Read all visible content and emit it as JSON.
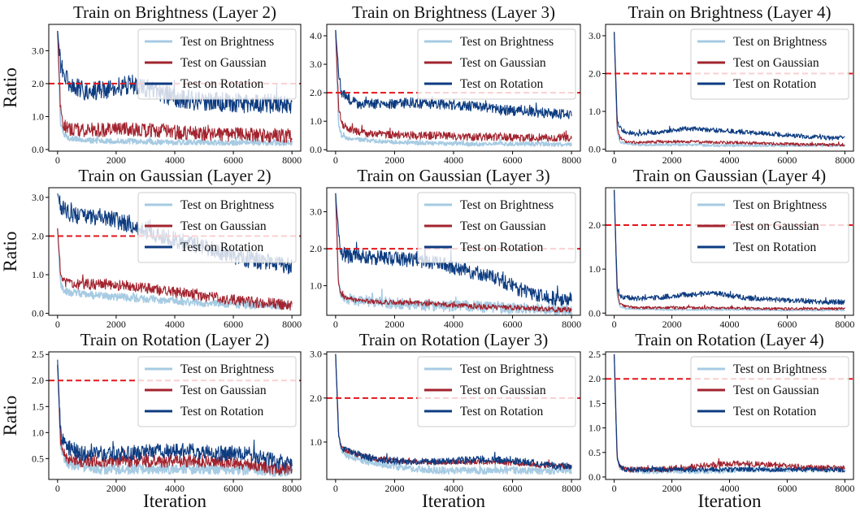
{
  "figure": {
    "row_label": "Ratio",
    "col_label": "Iteration",
    "threshold": 2.0,
    "colors": {
      "brightness": "#a6cbe3",
      "gaussian": "#a2232e",
      "rotation": "#0c3b80",
      "threshold": "#e3161b"
    }
  },
  "chart_data": [
    {
      "type": "line",
      "title": "Train on Brightness (Layer 2)",
      "xlabel": "",
      "ylabel": "Ratio",
      "xlim": [
        -300,
        8300
      ],
      "ylim": [
        -0.05,
        3.8
      ],
      "xticks": [
        "0",
        "2000",
        "4000",
        "6000",
        "8000"
      ],
      "yticks": [
        "0.0",
        "1.0",
        "2.0",
        "3.0"
      ],
      "ytick_values": [
        0,
        1,
        2,
        3
      ],
      "x": [
        0,
        100,
        200,
        400,
        800,
        1500,
        2500,
        3500,
        4500,
        5500,
        6500,
        7500,
        8000
      ],
      "legend": "top-right",
      "threshold": 2.0,
      "series": [
        {
          "name": "Test on Brightness",
          "key": "brightness",
          "values": [
            3.6,
            0.8,
            0.45,
            0.35,
            0.3,
            0.25,
            0.25,
            0.22,
            0.22,
            0.2,
            0.2,
            0.2,
            0.2
          ],
          "noise": 0.08
        },
        {
          "name": "Test on Gaussian",
          "key": "gaussian",
          "values": [
            3.6,
            1.2,
            0.7,
            0.6,
            0.6,
            0.6,
            0.6,
            0.55,
            0.5,
            0.45,
            0.45,
            0.42,
            0.4
          ],
          "noise": 0.22
        },
        {
          "name": "Test on Rotation",
          "key": "rotation",
          "values": [
            3.6,
            2.6,
            2.3,
            2.0,
            1.8,
            1.8,
            2.0,
            1.7,
            1.5,
            1.45,
            1.4,
            1.4,
            1.4
          ],
          "noise": 0.3
        }
      ]
    },
    {
      "type": "line",
      "title": "Train on Brightness (Layer 3)",
      "xlabel": "",
      "ylabel": "",
      "xlim": [
        -300,
        8300
      ],
      "ylim": [
        -0.05,
        4.4
      ],
      "xticks": [
        "0",
        "2000",
        "4000",
        "6000",
        "8000"
      ],
      "yticks": [
        "0.0",
        "1.0",
        "2.0",
        "3.0",
        "4.0"
      ],
      "ytick_values": [
        0,
        1,
        2,
        3,
        4
      ],
      "x": [
        0,
        100,
        200,
        400,
        800,
        1500,
        2500,
        3500,
        4500,
        5500,
        6500,
        7500,
        8000
      ],
      "legend": "top-right",
      "threshold": 2.0,
      "series": [
        {
          "name": "Test on Brightness",
          "key": "brightness",
          "values": [
            4.2,
            0.9,
            0.5,
            0.4,
            0.35,
            0.3,
            0.25,
            0.22,
            0.2,
            0.2,
            0.2,
            0.18,
            0.18
          ],
          "noise": 0.07
        },
        {
          "name": "Test on Gaussian",
          "key": "gaussian",
          "values": [
            4.2,
            1.5,
            0.9,
            0.75,
            0.6,
            0.55,
            0.5,
            0.5,
            0.45,
            0.45,
            0.42,
            0.42,
            0.42
          ],
          "noise": 0.14
        },
        {
          "name": "Test on Rotation",
          "key": "rotation",
          "values": [
            4.2,
            2.7,
            2.0,
            1.8,
            1.6,
            1.6,
            1.65,
            1.6,
            1.55,
            1.4,
            1.35,
            1.25,
            1.25
          ],
          "noise": 0.18
        }
      ]
    },
    {
      "type": "line",
      "title": "Train on Brightness (Layer 4)",
      "xlabel": "",
      "ylabel": "",
      "xlim": [
        -300,
        8300
      ],
      "ylim": [
        -0.05,
        3.3
      ],
      "xticks": [
        "0",
        "2000",
        "4000",
        "6000",
        "8000"
      ],
      "yticks": [
        "0.0",
        "1.0",
        "2.0",
        "3.0"
      ],
      "ytick_values": [
        0,
        1,
        2,
        3
      ],
      "x": [
        0,
        100,
        200,
        400,
        800,
        1500,
        2500,
        3500,
        4500,
        5500,
        6500,
        7500,
        8000
      ],
      "legend": "top-right",
      "threshold": 2.0,
      "series": [
        {
          "name": "Test on Brightness",
          "key": "brightness",
          "values": [
            3.1,
            0.5,
            0.2,
            0.15,
            0.12,
            0.12,
            0.12,
            0.1,
            0.1,
            0.1,
            0.1,
            0.1,
            0.1
          ],
          "noise": 0.03
        },
        {
          "name": "Test on Gaussian",
          "key": "gaussian",
          "values": [
            3.1,
            0.6,
            0.3,
            0.2,
            0.18,
            0.2,
            0.2,
            0.18,
            0.17,
            0.15,
            0.13,
            0.12,
            0.12
          ],
          "noise": 0.04
        },
        {
          "name": "Test on Rotation",
          "key": "rotation",
          "values": [
            3.1,
            0.8,
            0.55,
            0.45,
            0.4,
            0.45,
            0.55,
            0.5,
            0.45,
            0.4,
            0.35,
            0.3,
            0.3
          ],
          "noise": 0.06
        }
      ]
    },
    {
      "type": "line",
      "title": "Train on Gaussian (Layer 2)",
      "xlabel": "",
      "ylabel": "Ratio",
      "xlim": [
        -300,
        8300
      ],
      "ylim": [
        -0.05,
        3.25
      ],
      "xticks": [
        "0",
        "2000",
        "4000",
        "6000",
        "8000"
      ],
      "yticks": [
        "0.0",
        "1.0",
        "2.0",
        "3.0"
      ],
      "ytick_values": [
        0,
        1,
        2,
        3
      ],
      "x": [
        0,
        100,
        200,
        400,
        800,
        1500,
        2500,
        3500,
        4500,
        5500,
        6500,
        7500,
        8000
      ],
      "legend": "top-right",
      "threshold": 2.0,
      "series": [
        {
          "name": "Test on Brightness",
          "key": "brightness",
          "values": [
            2.2,
            0.8,
            0.6,
            0.55,
            0.5,
            0.45,
            0.4,
            0.35,
            0.3,
            0.25,
            0.22,
            0.2,
            0.2
          ],
          "noise": 0.1
        },
        {
          "name": "Test on Gaussian",
          "key": "gaussian",
          "values": [
            2.2,
            1.0,
            0.8,
            0.75,
            0.75,
            0.75,
            0.7,
            0.6,
            0.5,
            0.4,
            0.3,
            0.25,
            0.2
          ],
          "noise": 0.14
        },
        {
          "name": "Test on Rotation",
          "key": "rotation",
          "values": [
            3.1,
            2.8,
            2.7,
            2.6,
            2.5,
            2.5,
            2.3,
            2.0,
            1.8,
            1.6,
            1.4,
            1.3,
            1.2
          ],
          "noise": 0.22
        }
      ]
    },
    {
      "type": "line",
      "title": "Train on Gaussian (Layer 3)",
      "xlabel": "",
      "ylabel": "",
      "xlim": [
        -300,
        8300
      ],
      "ylim": [
        0.2,
        3.65
      ],
      "xticks": [
        "0",
        "2000",
        "4000",
        "6000",
        "8000"
      ],
      "yticks": [
        "1.0",
        "2.0",
        "3.0"
      ],
      "ytick_values": [
        1,
        2,
        3
      ],
      "x": [
        0,
        100,
        200,
        400,
        800,
        1500,
        2500,
        3500,
        4500,
        5500,
        6500,
        7500,
        8000
      ],
      "legend": "top-right",
      "threshold": 2.0,
      "series": [
        {
          "name": "Test on Brightness",
          "key": "brightness",
          "values": [
            3.5,
            1.0,
            0.75,
            0.65,
            0.6,
            0.55,
            0.5,
            0.45,
            0.45,
            0.4,
            0.38,
            0.35,
            0.35
          ],
          "noise": 0.15
        },
        {
          "name": "Test on Gaussian",
          "key": "gaussian",
          "values": [
            3.5,
            1.0,
            0.75,
            0.65,
            0.6,
            0.55,
            0.55,
            0.5,
            0.45,
            0.42,
            0.4,
            0.35,
            0.35
          ],
          "noise": 0.07
        },
        {
          "name": "Test on Rotation",
          "key": "rotation",
          "values": [
            3.5,
            2.3,
            1.9,
            1.8,
            1.8,
            1.75,
            1.7,
            1.6,
            1.4,
            1.2,
            0.8,
            0.65,
            0.65
          ],
          "noise": 0.2
        }
      ]
    },
    {
      "type": "line",
      "title": "Train on Gaussian (Layer 4)",
      "xlabel": "",
      "ylabel": "",
      "xlim": [
        -300,
        8300
      ],
      "ylim": [
        -0.05,
        2.85
      ],
      "xticks": [
        "0",
        "2000",
        "4000",
        "6000",
        "8000"
      ],
      "yticks": [
        "0.0",
        "1.0",
        "2.0"
      ],
      "ytick_values": [
        0,
        1,
        2
      ],
      "x": [
        0,
        100,
        200,
        400,
        800,
        1500,
        2500,
        3500,
        4500,
        5500,
        6500,
        7500,
        8000
      ],
      "legend": "top-right",
      "threshold": 2.0,
      "series": [
        {
          "name": "Test on Brightness",
          "key": "brightness",
          "values": [
            2.8,
            0.4,
            0.15,
            0.1,
            0.1,
            0.08,
            0.08,
            0.08,
            0.08,
            0.07,
            0.07,
            0.07,
            0.07
          ],
          "noise": 0.02
        },
        {
          "name": "Test on Gaussian",
          "key": "gaussian",
          "values": [
            2.8,
            0.5,
            0.2,
            0.15,
            0.12,
            0.12,
            0.12,
            0.12,
            0.11,
            0.1,
            0.1,
            0.1,
            0.1
          ],
          "noise": 0.03
        },
        {
          "name": "Test on Rotation",
          "key": "rotation",
          "values": [
            2.8,
            0.6,
            0.4,
            0.35,
            0.33,
            0.35,
            0.42,
            0.45,
            0.35,
            0.3,
            0.28,
            0.25,
            0.25
          ],
          "noise": 0.06
        }
      ]
    },
    {
      "type": "line",
      "title": "Train on Rotation (Layer 2)",
      "xlabel": "Iteration",
      "ylabel": "Ratio",
      "xlim": [
        -300,
        8300
      ],
      "ylim": [
        0.1,
        2.55
      ],
      "xticks": [
        "0",
        "2000",
        "4000",
        "6000",
        "8000"
      ],
      "yticks": [
        "0.5",
        "1.0",
        "1.5",
        "2.0",
        "2.5"
      ],
      "ytick_values": [
        0.5,
        1,
        1.5,
        2,
        2.5
      ],
      "x": [
        0,
        100,
        200,
        400,
        800,
        1500,
        2500,
        3500,
        4500,
        5500,
        6500,
        7500,
        8000
      ],
      "legend": "top-right",
      "threshold": 2.0,
      "series": [
        {
          "name": "Test on Brightness",
          "key": "brightness",
          "values": [
            2.3,
            0.8,
            0.5,
            0.4,
            0.35,
            0.3,
            0.3,
            0.3,
            0.3,
            0.3,
            0.28,
            0.25,
            0.25
          ],
          "noise": 0.1
        },
        {
          "name": "Test on Gaussian",
          "key": "gaussian",
          "values": [
            2.3,
            0.9,
            0.6,
            0.5,
            0.45,
            0.45,
            0.45,
            0.45,
            0.45,
            0.45,
            0.4,
            0.3,
            0.3
          ],
          "noise": 0.12
        },
        {
          "name": "Test on Rotation",
          "key": "rotation",
          "values": [
            2.4,
            1.0,
            0.8,
            0.7,
            0.6,
            0.6,
            0.6,
            0.65,
            0.65,
            0.6,
            0.6,
            0.45,
            0.4
          ],
          "noise": 0.15
        }
      ]
    },
    {
      "type": "line",
      "title": "Train on Rotation (Layer 3)",
      "xlabel": "Iteration",
      "ylabel": "",
      "xlim": [
        -300,
        8300
      ],
      "ylim": [
        0.15,
        3.05
      ],
      "xticks": [
        "0",
        "2000",
        "4000",
        "6000",
        "8000"
      ],
      "yticks": [
        "1.0",
        "2.0",
        "3.0"
      ],
      "ytick_values": [
        1,
        2,
        3
      ],
      "x": [
        0,
        100,
        200,
        400,
        800,
        1500,
        2500,
        3500,
        4500,
        5500,
        6500,
        7500,
        8000
      ],
      "legend": "top-right",
      "threshold": 2.0,
      "series": [
        {
          "name": "Test on Brightness",
          "key": "brightness",
          "values": [
            3.0,
            1.2,
            0.8,
            0.7,
            0.6,
            0.5,
            0.4,
            0.35,
            0.35,
            0.35,
            0.35,
            0.35,
            0.35
          ],
          "noise": 0.08
        },
        {
          "name": "Test on Gaussian",
          "key": "gaussian",
          "values": [
            3.0,
            1.2,
            0.85,
            0.8,
            0.7,
            0.6,
            0.55,
            0.55,
            0.55,
            0.55,
            0.5,
            0.45,
            0.45
          ],
          "noise": 0.06
        },
        {
          "name": "Test on Rotation",
          "key": "rotation",
          "values": [
            3.0,
            1.2,
            0.85,
            0.8,
            0.7,
            0.6,
            0.55,
            0.55,
            0.6,
            0.6,
            0.55,
            0.45,
            0.45
          ],
          "noise": 0.08
        }
      ]
    },
    {
      "type": "line",
      "title": "Train on Rotation (Layer 4)",
      "xlabel": "Iteration",
      "ylabel": "",
      "xlim": [
        -300,
        8300
      ],
      "ylim": [
        -0.05,
        2.55
      ],
      "xticks": [
        "0",
        "2000",
        "4000",
        "6000",
        "8000"
      ],
      "yticks": [
        "0.0",
        "0.5",
        "1.0",
        "1.5",
        "2.0",
        "2.5"
      ],
      "ytick_values": [
        0,
        0.5,
        1,
        1.5,
        2,
        2.5
      ],
      "x": [
        0,
        100,
        200,
        400,
        800,
        1500,
        2500,
        3500,
        4500,
        5500,
        6500,
        7500,
        8000
      ],
      "legend": "top-right",
      "threshold": 2.0,
      "series": [
        {
          "name": "Test on Brightness",
          "key": "brightness",
          "values": [
            2.5,
            0.4,
            0.2,
            0.15,
            0.12,
            0.12,
            0.12,
            0.12,
            0.15,
            0.15,
            0.15,
            0.15,
            0.15
          ],
          "noise": 0.05
        },
        {
          "name": "Test on Gaussian",
          "key": "gaussian",
          "values": [
            2.5,
            0.4,
            0.2,
            0.15,
            0.15,
            0.15,
            0.2,
            0.25,
            0.28,
            0.25,
            0.2,
            0.18,
            0.18
          ],
          "noise": 0.06
        },
        {
          "name": "Test on Rotation",
          "key": "rotation",
          "values": [
            2.5,
            0.4,
            0.2,
            0.15,
            0.15,
            0.15,
            0.15,
            0.15,
            0.15,
            0.15,
            0.15,
            0.15,
            0.15
          ],
          "noise": 0.05
        }
      ]
    }
  ]
}
